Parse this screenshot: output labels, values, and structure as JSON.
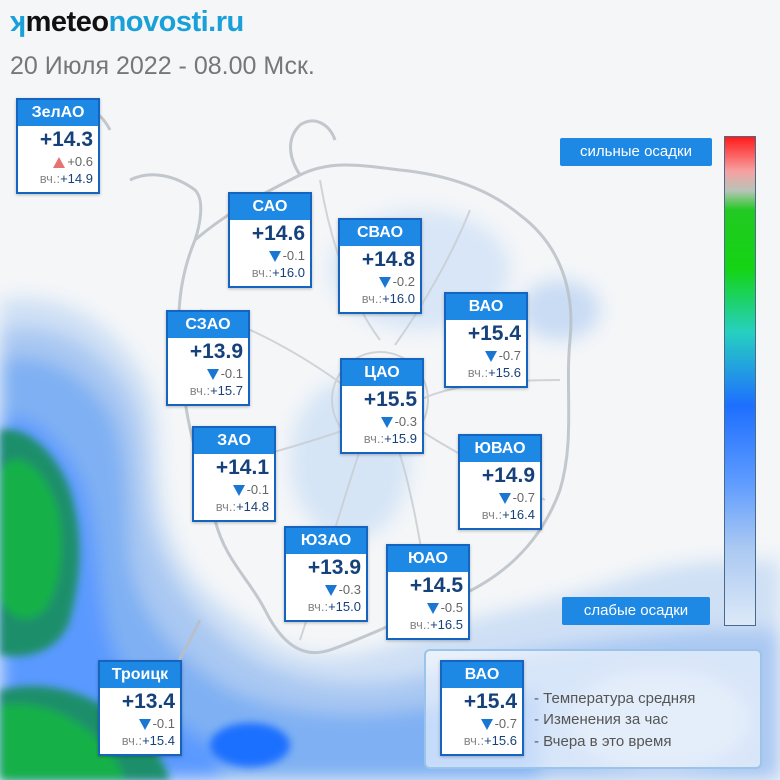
{
  "header": {
    "logo_prefix": "ʞ",
    "logo_part1": "meteo",
    "logo_part2": "novosti.ru",
    "date": "20 Июля 2022 - 08.00 Мск."
  },
  "yesterday_label": "вч.:",
  "districts": [
    {
      "name": "ЗелАО",
      "temp": "+14.3",
      "trend": "up",
      "change": "+0.6",
      "yesterday": "+14.9"
    },
    {
      "name": "САО",
      "temp": "+14.6",
      "trend": "down",
      "change": "-0.1",
      "yesterday": "+16.0"
    },
    {
      "name": "СВАО",
      "temp": "+14.8",
      "trend": "down",
      "change": "-0.2",
      "yesterday": "+16.0"
    },
    {
      "name": "ВАО",
      "temp": "+15.4",
      "trend": "down",
      "change": "-0.7",
      "yesterday": "+15.6"
    },
    {
      "name": "СЗАО",
      "temp": "+13.9",
      "trend": "down",
      "change": "-0.1",
      "yesterday": "+15.7"
    },
    {
      "name": "ЦАО",
      "temp": "+15.5",
      "trend": "down",
      "change": "-0.3",
      "yesterday": "+15.9"
    },
    {
      "name": "ЗАО",
      "temp": "+14.1",
      "trend": "down",
      "change": "-0.1",
      "yesterday": "+14.8"
    },
    {
      "name": "ЮВАО",
      "temp": "+14.9",
      "trend": "down",
      "change": "-0.7",
      "yesterday": "+16.4"
    },
    {
      "name": "ЮЗАО",
      "temp": "+13.9",
      "trend": "down",
      "change": "-0.3",
      "yesterday": "+15.0"
    },
    {
      "name": "ЮАО",
      "temp": "+14.5",
      "trend": "down",
      "change": "-0.5",
      "yesterday": "+16.5"
    },
    {
      "name": "Троицк",
      "temp": "+13.4",
      "trend": "down",
      "change": "-0.1",
      "yesterday": "+15.4"
    }
  ],
  "precip_scale": {
    "high_label": "сильные осадки",
    "low_label": "слабые осадки",
    "colors": [
      "#ff1a1a",
      "#22c922",
      "#1e6fff",
      "#dde9f8"
    ]
  },
  "legend": {
    "example": {
      "name": "ВАО",
      "temp": "+15.4",
      "trend": "down",
      "change": "-0.7",
      "yesterday": "+15.6"
    },
    "line1": "- Температура средняя",
    "line2": "- Изменения за час",
    "line3": "- Вчера в это время"
  }
}
